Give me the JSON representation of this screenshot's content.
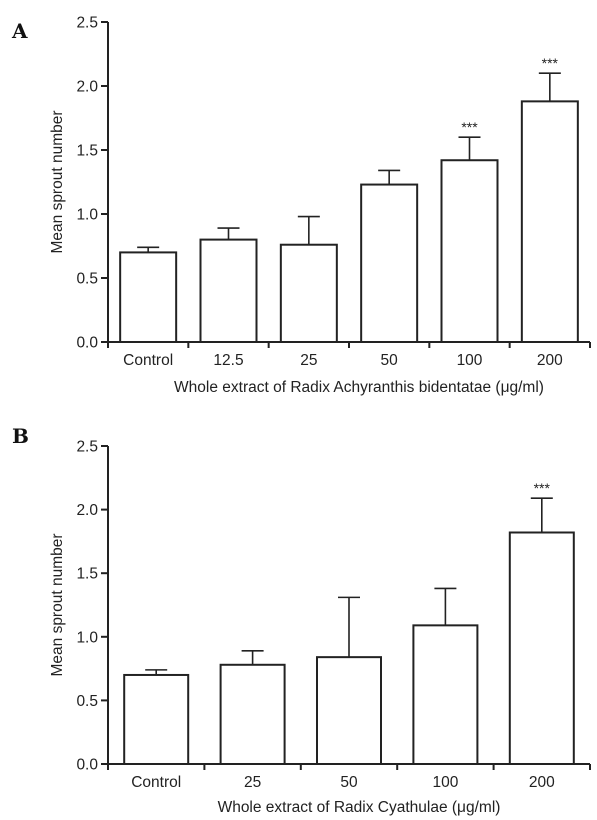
{
  "chart_data": [
    {
      "type": "bar",
      "panel": "A",
      "categories": [
        "Control",
        "12.5",
        "25",
        "50",
        "100",
        "200"
      ],
      "values": [
        0.7,
        0.8,
        0.76,
        1.23,
        1.42,
        1.88
      ],
      "errors": [
        0.04,
        0.09,
        0.22,
        0.11,
        0.18,
        0.22
      ],
      "significance": [
        "",
        "",
        "",
        "",
        "***",
        "***"
      ],
      "xlabel": "Whole extract of Radix Achyranthis bidentatae (μg/ml)",
      "ylabel": "Mean sprout number",
      "ylim": [
        0,
        2.5
      ],
      "yticks": [
        "0.0",
        "0.5",
        "1.0",
        "1.5",
        "2.0",
        "2.5"
      ]
    },
    {
      "type": "bar",
      "panel": "B",
      "categories": [
        "Control",
        "25",
        "50",
        "100",
        "200"
      ],
      "values": [
        0.7,
        0.78,
        0.84,
        1.09,
        1.82
      ],
      "errors": [
        0.04,
        0.11,
        0.47,
        0.29,
        0.27
      ],
      "significance": [
        "",
        "",
        "",
        "",
        "***"
      ],
      "xlabel": "Whole extract of Radix Cyathulae (μg/ml)",
      "ylabel": "Mean sprout number",
      "ylim": [
        0,
        2.5
      ],
      "yticks": [
        "0.0",
        "0.5",
        "1.0",
        "1.5",
        "2.0",
        "2.5"
      ]
    }
  ]
}
